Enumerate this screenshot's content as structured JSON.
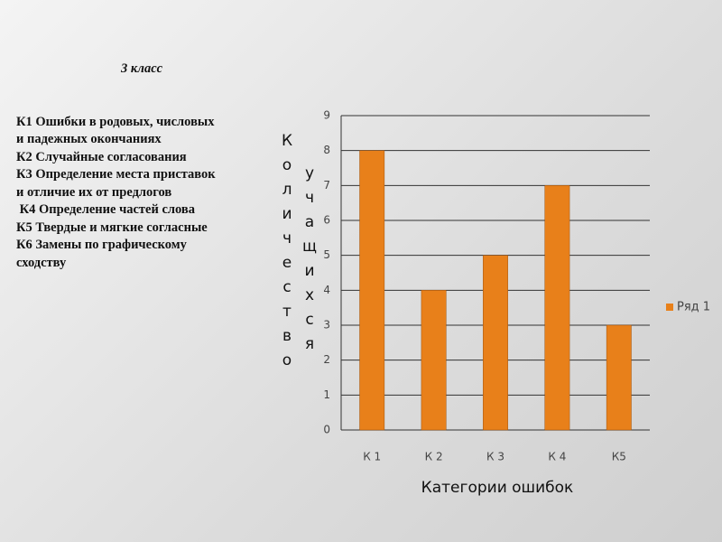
{
  "notes": {
    "title": "3 класс",
    "lines": [
      "К1 Ошибки в родовых, числовых",
      "и падежных окончаниях",
      "К2 Случайные согласования",
      "К3 Определение места приставок",
      "и отличие их от предлогов",
      " К4 Определение частей слова",
      "К5 Твердые и мягкие согласные",
      "К6 Замены по графическому",
      "сходству"
    ]
  },
  "chart_data": {
    "type": "bar",
    "xlabel": "Категории ошибок",
    "ylabel": [
      "Количество",
      "учащихся"
    ],
    "categories": [
      "К 1",
      "К 2",
      "К 3",
      "К 4",
      "К5"
    ],
    "series": [
      {
        "name": "Ряд 1",
        "color": "#e8801a",
        "values": [
          8,
          4,
          5,
          7,
          3
        ]
      }
    ],
    "ylim": [
      0,
      9
    ],
    "yticks": [
      0,
      1,
      2,
      3,
      4,
      5,
      6,
      7,
      8,
      9
    ],
    "grid": true,
    "legend": "right"
  }
}
